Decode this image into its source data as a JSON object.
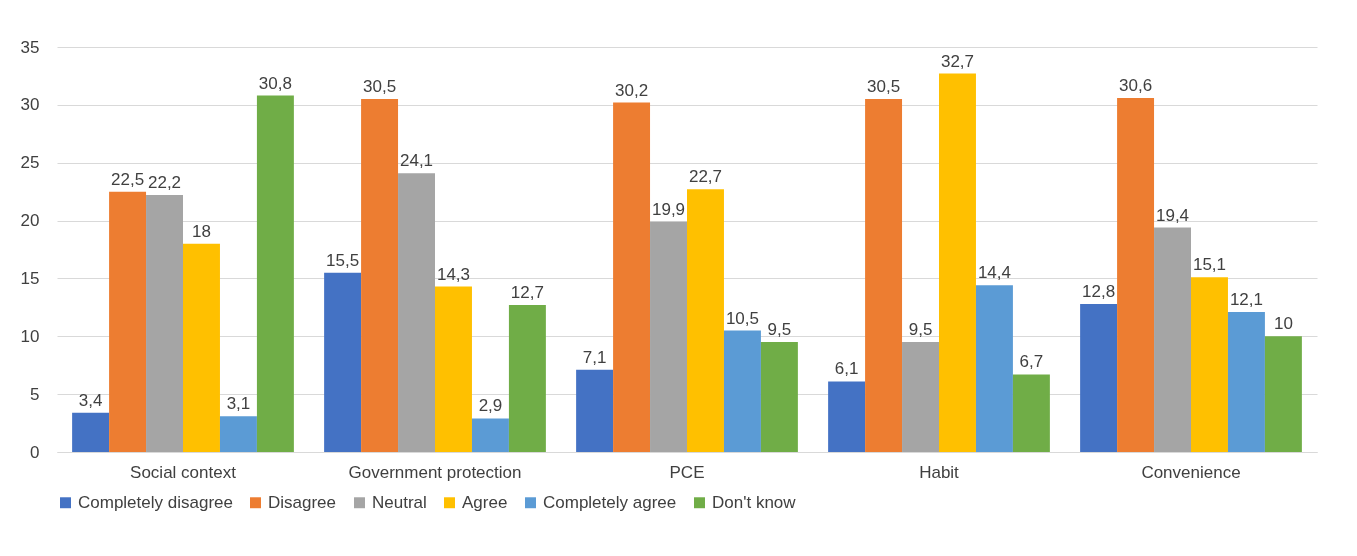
{
  "chart_data": {
    "type": "bar",
    "categories": [
      "Social context",
      "Government protection",
      "PCE",
      "Habit",
      "Convenience"
    ],
    "series": [
      {
        "name": "Completely disagree",
        "color": "#4472c4",
        "values": [
          3.4,
          15.5,
          7.1,
          6.1,
          12.8
        ],
        "value_labels": [
          "3,4",
          "15,5",
          "7,1",
          "6,1",
          "12,8"
        ]
      },
      {
        "name": "Disagree",
        "color": "#ed7d31",
        "values": [
          22.5,
          30.5,
          30.2,
          30.5,
          30.6
        ],
        "value_labels": [
          "22,5",
          "30,5",
          "30,2",
          "30,5",
          "30,6"
        ]
      },
      {
        "name": "Neutral",
        "color": "#a5a5a5",
        "values": [
          22.2,
          24.1,
          19.9,
          9.5,
          19.4
        ],
        "value_labels": [
          "22,2",
          "24,1",
          "19,9",
          "9,5",
          "19,4"
        ]
      },
      {
        "name": "Agree",
        "color": "#ffc000",
        "values": [
          18,
          14.3,
          22.7,
          32.7,
          15.1
        ],
        "value_labels": [
          "18",
          "14,3",
          "22,7",
          "32,7",
          "15,1"
        ]
      },
      {
        "name": "Completely agree",
        "color": "#5b9bd5",
        "values": [
          3.1,
          2.9,
          10.5,
          14.4,
          12.1
        ],
        "value_labels": [
          "3,1",
          "2,9",
          "10,5",
          "14,4",
          "12,1"
        ]
      },
      {
        "name": "Don't know",
        "color": "#70ad47",
        "values": [
          30.8,
          12.7,
          9.5,
          6.7,
          10
        ],
        "value_labels": [
          "30,8",
          "12,7",
          "9,5",
          "6,7",
          "10"
        ]
      }
    ],
    "ylim": [
      0,
      35
    ],
    "yticks": [
      0,
      5,
      10,
      15,
      20,
      25,
      30,
      35
    ],
    "grid": "y",
    "legend": "bottom"
  }
}
